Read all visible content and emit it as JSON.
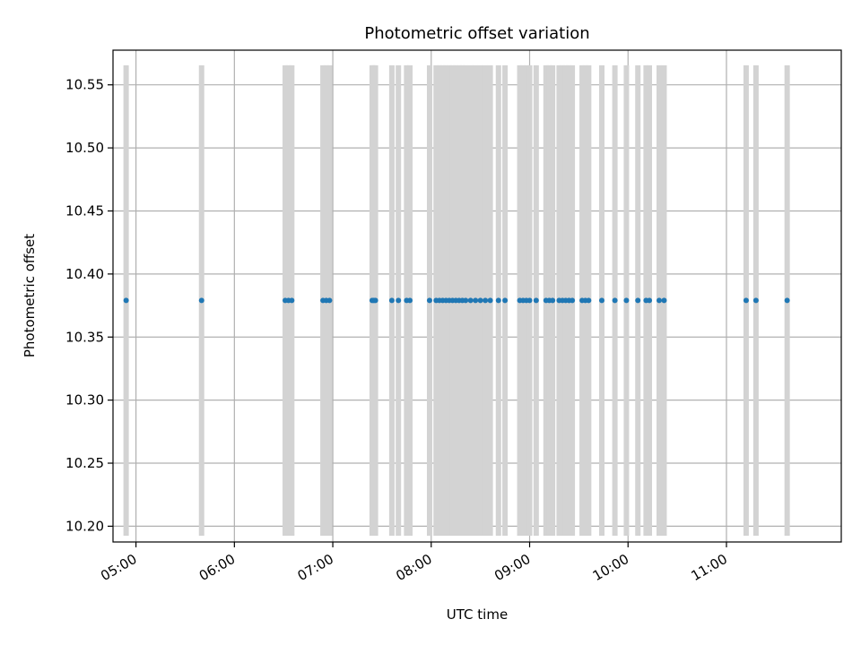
{
  "chart_data": {
    "type": "scatter",
    "title": "Photometric offset variation",
    "xlabel": "UTC time",
    "ylabel": "Photometric offset",
    "grid": true,
    "xlim": [
      "04:46",
      "12:10"
    ],
    "ylim": [
      10.1875,
      10.5775
    ],
    "x_ticks": [
      "05:00",
      "06:00",
      "07:00",
      "08:00",
      "09:00",
      "10:00",
      "11:00"
    ],
    "y_ticks": [
      "10.20",
      "10.25",
      "10.30",
      "10.35",
      "10.40",
      "10.45",
      "10.50",
      "10.55"
    ],
    "band_range": [
      10.1925,
      10.5655
    ],
    "colors": {
      "points": "#1f77b4",
      "bands": "#d3d3d3",
      "grid": "#b0b0b0"
    },
    "series": [
      {
        "x": [
          "04:54",
          "05:40",
          "06:31",
          "06:33",
          "06:35",
          "06:54",
          "06:56",
          "06:58",
          "07:24",
          "07:25",
          "07:26",
          "07:36",
          "07:40",
          "07:45",
          "07:47",
          "07:59",
          "08:03",
          "08:05",
          "08:07",
          "08:09",
          "08:11",
          "08:13",
          "08:15",
          "08:17",
          "08:19",
          "08:21",
          "08:24",
          "08:27",
          "08:30",
          "08:33",
          "08:36",
          "08:41",
          "08:45",
          "08:54",
          "08:56",
          "08:58",
          "09:00",
          "09:04",
          "09:10",
          "09:12",
          "09:14",
          "09:18",
          "09:20",
          "09:22",
          "09:24",
          "09:26",
          "09:32",
          "09:34",
          "09:36",
          "09:44",
          "09:52",
          "09:59",
          "10:06",
          "10:11",
          "10:13",
          "10:19",
          "10:22",
          "11:12",
          "11:18",
          "11:37"
        ],
        "y": [
          10.379,
          10.379,
          10.379,
          10.379,
          10.379,
          10.379,
          10.379,
          10.379,
          10.379,
          10.379,
          10.379,
          10.379,
          10.379,
          10.379,
          10.379,
          10.379,
          10.379,
          10.379,
          10.379,
          10.379,
          10.379,
          10.379,
          10.379,
          10.379,
          10.379,
          10.379,
          10.379,
          10.379,
          10.379,
          10.379,
          10.379,
          10.379,
          10.379,
          10.379,
          10.379,
          10.379,
          10.379,
          10.379,
          10.379,
          10.379,
          10.379,
          10.379,
          10.379,
          10.379,
          10.379,
          10.379,
          10.379,
          10.379,
          10.379,
          10.379,
          10.379,
          10.379,
          10.379,
          10.379,
          10.379,
          10.379,
          10.379,
          10.379,
          10.379,
          10.379
        ]
      }
    ]
  }
}
